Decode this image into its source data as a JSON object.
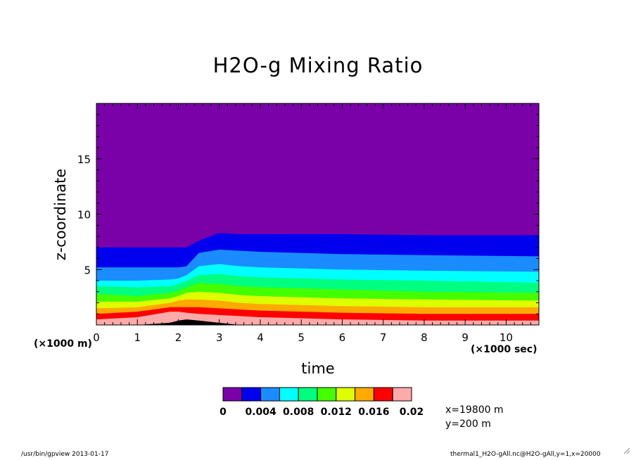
{
  "chart_data": {
    "type": "heatmap",
    "title": "H2O-g Mixing Ratio",
    "xlabel": "time",
    "ylabel": "z-coordinate",
    "x_unit_label": "(×1000 sec)",
    "y_unit_label": "(×1000 m)",
    "xlim": [
      0,
      10.8
    ],
    "ylim": [
      0,
      20
    ],
    "x_ticks": [
      "0",
      "1",
      "2",
      "3",
      "4",
      "5",
      "6",
      "7",
      "8",
      "9",
      "10"
    ],
    "y_ticks": [
      "5",
      "10",
      "15"
    ],
    "levels": [
      0,
      0.002,
      0.004,
      0.006,
      0.008,
      0.01,
      0.012,
      0.014,
      0.016,
      0.018,
      0.02
    ],
    "colorbar_tick_labels": [
      "0",
      "0.004",
      "0.008",
      "0.012",
      "0.016",
      "0.02"
    ],
    "colors": [
      "#7a00a8",
      "#0000ee",
      "#1a8cff",
      "#00ffff",
      "#00ff80",
      "#44ff00",
      "#ddff00",
      "#ffaa00",
      "#ff0000",
      "#ffaaaa"
    ],
    "time_points": [
      0,
      1,
      1.8,
      2.0,
      2.2,
      2.5,
      3.0,
      3.5,
      4.0,
      5.0,
      6.0,
      8.0,
      10.8
    ],
    "contour_heights_km": [
      [
        7.0,
        7.0,
        7.0,
        7.0,
        7.0,
        7.6,
        8.3,
        8.2,
        8.2,
        8.2,
        8.2,
        8.1,
        8.1
      ],
      [
        5.2,
        5.2,
        5.2,
        5.2,
        5.3,
        6.5,
        6.8,
        6.7,
        6.6,
        6.5,
        6.4,
        6.3,
        6.2
      ],
      [
        4.0,
        4.0,
        4.1,
        4.2,
        4.5,
        5.3,
        5.5,
        5.3,
        5.2,
        5.1,
        5.0,
        4.9,
        4.8
      ],
      [
        3.5,
        3.4,
        3.5,
        3.7,
        4.0,
        4.5,
        4.6,
        4.4,
        4.3,
        4.2,
        4.1,
        4.0,
        3.8
      ],
      [
        2.8,
        2.6,
        2.9,
        3.1,
        3.4,
        3.8,
        3.7,
        3.5,
        3.4,
        3.3,
        3.2,
        3.0,
        2.9
      ],
      [
        2.1,
        2.1,
        2.4,
        2.6,
        2.9,
        3.0,
        2.9,
        2.7,
        2.6,
        2.5,
        2.4,
        2.3,
        2.2
      ],
      [
        1.5,
        1.6,
        2.0,
        2.2,
        2.3,
        2.3,
        2.2,
        2.0,
        1.9,
        1.8,
        1.7,
        1.6,
        1.6
      ],
      [
        1.0,
        1.2,
        1.6,
        1.6,
        1.6,
        1.6,
        1.5,
        1.4,
        1.3,
        1.2,
        1.1,
        1.0,
        1.0
      ],
      [
        0.5,
        0.7,
        1.2,
        1.2,
        1.1,
        1.0,
        0.9,
        0.8,
        0.7,
        0.6,
        0.5,
        0.4,
        0.4
      ],
      [
        0.0,
        0.0,
        0.2,
        0.4,
        0.5,
        0.4,
        0.2,
        0.0,
        0.0,
        0.0,
        0.0,
        0.0,
        0.0
      ]
    ],
    "grid": false,
    "legend": "colorbar bottom-center",
    "annotations": [
      "x=19800 m",
      "y=200 m"
    ]
  },
  "footer": {
    "program": "/usr/bin/gpview  2013-01-17",
    "source": "thermal1_H2O-gAll.nc@H2O-gAll,y=1,x=20000"
  }
}
